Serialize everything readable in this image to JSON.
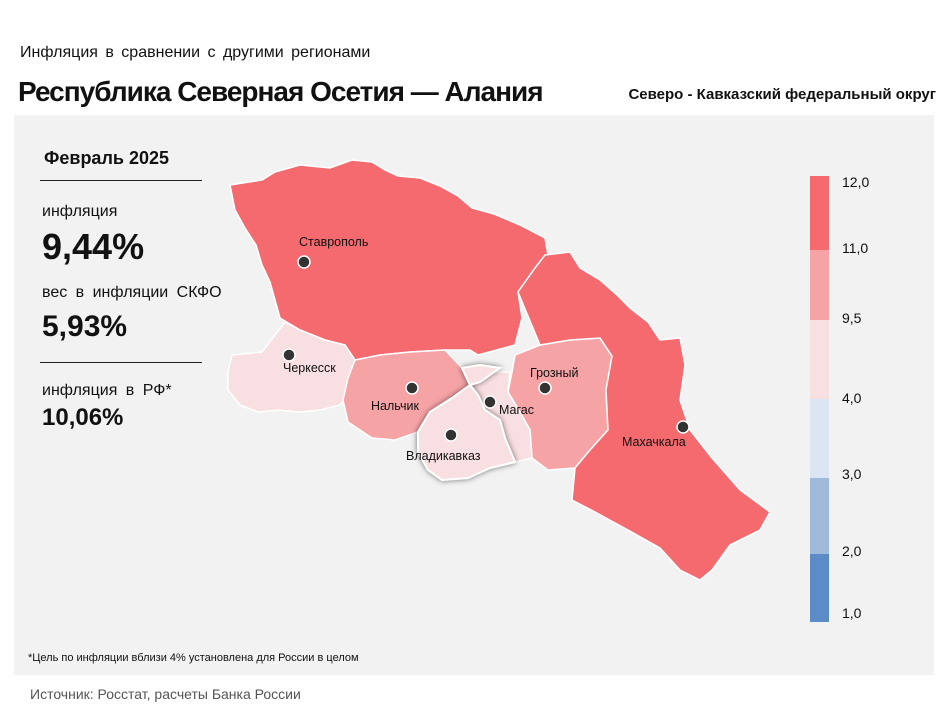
{
  "header": {
    "subtitle": "Инфляция  в сравнении  с другими  регионами",
    "title": "Республика Северная Осетия — Алания",
    "district": "Северо - Кавказский федеральный округ"
  },
  "panel": {
    "period": "Февраль 2025",
    "inflation_label": "инфляция",
    "inflation_value": "9,44%",
    "weight_label": "вес в инфляции  СКФО",
    "weight_value": "5,93%",
    "rf_label": "инфляция  в РФ*",
    "rf_value": "10,06%"
  },
  "map": {
    "highlighted_region": "Республика Северная Осетия — Алания",
    "regions": [
      {
        "name": "Ставропольский край",
        "city": "Ставрополь",
        "color": "#f46a6e"
      },
      {
        "name": "Карачаево-Черкесская Республика",
        "city": "Черкесск",
        "color": "#f8dfe1"
      },
      {
        "name": "Кабардино-Балкарская Республика",
        "city": "Нальчик",
        "color": "#f6a3a6"
      },
      {
        "name": "Республика Северная Осетия — Алания",
        "city": "Владикавказ",
        "color": "#f8dfe1"
      },
      {
        "name": "Республика Ингушетия",
        "city": "Магас",
        "color": "#f8dfe1"
      },
      {
        "name": "Чеченская Республика",
        "city": "Грозный",
        "color": "#f6a3a6"
      },
      {
        "name": "Республика Дагестан",
        "city": "Махачкала",
        "color": "#f46a6e"
      }
    ]
  },
  "legend": {
    "bins": [
      {
        "from": "11,0",
        "to": "12,0",
        "color": "#f46a6e"
      },
      {
        "from": "9,5",
        "to": "11,0",
        "color": "#f6a3a6"
      },
      {
        "from": "4,0",
        "to": "9,5",
        "color": "#f8dfe1"
      },
      {
        "from": "3,0",
        "to": "4,0",
        "color": "#dbe5f4"
      },
      {
        "from": "2,0",
        "to": "3,0",
        "color": "#a0badc"
      },
      {
        "from": "1,0",
        "to": "2,0",
        "color": "#5b8cc8"
      }
    ],
    "labels": [
      "12,0",
      "11,0",
      "9,5",
      "4,0",
      "3,0",
      "2,0",
      "1,0"
    ]
  },
  "footnote": "*Цель по инфляции вблизи 4% установлена для России в целом",
  "source": "Источник: Росстат, расчеты Банка России"
}
